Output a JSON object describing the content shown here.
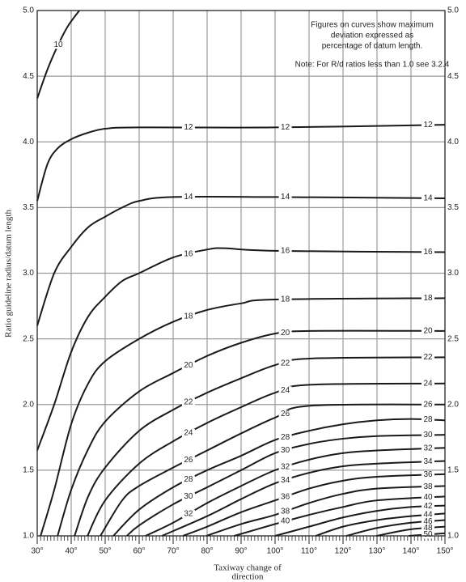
{
  "chart_data": {
    "type": "contour-line",
    "x_label_lines": [
      "Taxiway change of",
      "direction"
    ],
    "y_label": "Ratio guideline radius/datum length",
    "annotation_lines": [
      "Figures on curves show maximum",
      "deviation expressed as",
      "percentage of datum length."
    ],
    "note": "Note: For R/d ratios less than 1.0 see 3.2.4",
    "color": "#1a1a1a",
    "grid": true,
    "xlim": [
      30,
      150
    ],
    "xticks": [
      {
        "value": 30,
        "label": "30°"
      },
      {
        "value": 40,
        "label": "40°"
      },
      {
        "value": 50,
        "label": "50°"
      },
      {
        "value": 60,
        "label": "60°"
      },
      {
        "value": 70,
        "label": "70°"
      },
      {
        "value": 80,
        "label": "80°"
      },
      {
        "value": 90,
        "label": "90°"
      },
      {
        "value": 100,
        "label": "100°"
      },
      {
        "value": 110,
        "label": "110°"
      },
      {
        "value": 120,
        "label": "120°"
      },
      {
        "value": 130,
        "label": "130°"
      },
      {
        "value": 140,
        "label": "140°"
      },
      {
        "value": 150,
        "label": "150°"
      }
    ],
    "ylim": [
      1,
      5
    ],
    "yticks": [
      {
        "value": 1,
        "label": "1.0"
      },
      1.5,
      {
        "value": 2,
        "label": "2.0"
      },
      2.5,
      {
        "value": 3,
        "label": "3.0"
      },
      3.5,
      {
        "value": 4,
        "label": "4.0"
      },
      4.5,
      {
        "value": 5,
        "label": "5.0"
      }
    ],
    "series": [
      {
        "name": "10",
        "x": [
          30,
          33,
          36,
          39,
          42.4
        ],
        "values": [
          4.33,
          4.55,
          4.73,
          4.88,
          5.0
        ]
      },
      {
        "name": "12",
        "x": [
          30,
          33,
          36,
          40,
          45,
          50,
          60,
          100,
          150
        ],
        "values": [
          3.55,
          3.83,
          3.95,
          4.02,
          4.07,
          4.1,
          4.11,
          4.11,
          4.13
        ]
      },
      {
        "name": "14",
        "x": [
          30,
          35,
          40,
          45,
          50,
          55,
          60,
          70,
          100,
          150
        ],
        "values": [
          2.6,
          3.0,
          3.2,
          3.35,
          3.43,
          3.5,
          3.55,
          3.58,
          3.58,
          3.57
        ]
      },
      {
        "name": "16",
        "x": [
          30,
          35,
          40,
          45,
          50,
          55,
          60,
          70,
          80,
          85,
          100,
          150
        ],
        "values": [
          1.65,
          2.0,
          2.4,
          2.67,
          2.82,
          2.94,
          3.0,
          3.12,
          3.18,
          3.19,
          3.17,
          3.16
        ]
      },
      {
        "name": "18",
        "x": [
          31,
          35,
          40,
          45,
          50,
          60,
          70,
          80,
          90,
          100,
          150
        ],
        "values": [
          1.0,
          1.35,
          1.85,
          2.16,
          2.33,
          2.5,
          2.63,
          2.72,
          2.77,
          2.8,
          2.81
        ]
      },
      {
        "name": "20",
        "x": [
          36,
          40,
          45,
          50,
          60,
          70,
          80,
          90,
          100,
          110,
          150
        ],
        "values": [
          1.0,
          1.35,
          1.66,
          1.87,
          2.1,
          2.24,
          2.37,
          2.47,
          2.54,
          2.56,
          2.56
        ]
      },
      {
        "name": "22",
        "x": [
          41,
          45,
          50,
          60,
          70,
          80,
          90,
          100,
          110,
          150
        ],
        "values": [
          1.0,
          1.3,
          1.52,
          1.8,
          1.96,
          2.09,
          2.2,
          2.3,
          2.35,
          2.36
        ]
      },
      {
        "name": "24",
        "x": [
          44.8,
          50,
          60,
          70,
          80,
          90,
          100,
          110,
          150
        ],
        "values": [
          1.0,
          1.27,
          1.55,
          1.72,
          1.86,
          1.98,
          2.09,
          2.15,
          2.16
        ]
      },
      {
        "name": "26",
        "x": [
          48.6,
          55,
          60,
          70,
          80,
          90,
          100,
          110,
          150
        ],
        "values": [
          1.0,
          1.27,
          1.38,
          1.52,
          1.65,
          1.78,
          1.9,
          1.99,
          2.0
        ]
      },
      {
        "name": "28",
        "x": [
          52.4,
          60,
          70,
          80,
          90,
          100,
          110,
          120,
          130,
          140,
          150
        ],
        "values": [
          1.0,
          1.2,
          1.37,
          1.5,
          1.61,
          1.73,
          1.8,
          1.85,
          1.88,
          1.89,
          1.88
        ]
      },
      {
        "name": "30",
        "x": [
          56.4,
          60,
          70,
          80,
          90,
          100,
          110,
          120,
          130,
          150
        ],
        "values": [
          1.0,
          1.08,
          1.24,
          1.37,
          1.5,
          1.63,
          1.7,
          1.74,
          1.76,
          1.77
        ]
      },
      {
        "name": "32",
        "x": [
          61.9,
          70,
          80,
          90,
          100,
          110,
          120,
          130,
          150
        ],
        "values": [
          1.0,
          1.1,
          1.25,
          1.38,
          1.5,
          1.58,
          1.63,
          1.65,
          1.67
        ]
      },
      {
        "name": "34",
        "x": [
          66.7,
          80,
          90,
          100,
          110,
          120,
          130,
          150
        ],
        "values": [
          1.0,
          1.15,
          1.28,
          1.4,
          1.48,
          1.53,
          1.55,
          1.57
        ]
      },
      {
        "name": "36",
        "x": [
          72.9,
          80,
          90,
          100,
          110,
          120,
          130,
          150
        ],
        "values": [
          1.0,
          1.07,
          1.18,
          1.27,
          1.36,
          1.42,
          1.45,
          1.47
        ]
      },
      {
        "name": "38",
        "x": [
          79.8,
          90,
          100,
          110,
          120,
          130,
          150
        ],
        "values": [
          1.0,
          1.09,
          1.16,
          1.25,
          1.32,
          1.36,
          1.38
        ]
      },
      {
        "name": "40",
        "x": [
          88,
          100,
          110,
          120,
          130,
          150
        ],
        "values": [
          1.0,
          1.09,
          1.16,
          1.22,
          1.27,
          1.3
        ]
      },
      {
        "name": "42",
        "x": [
          100,
          110,
          120,
          130,
          140,
          150
        ],
        "values": [
          1.0,
          1.07,
          1.14,
          1.19,
          1.22,
          1.23
        ]
      },
      {
        "name": "44",
        "x": [
          112,
          120,
          130,
          140,
          150
        ],
        "values": [
          1.0,
          1.07,
          1.12,
          1.15,
          1.17
        ]
      },
      {
        "name": "46",
        "x": [
          121,
          130,
          140,
          150
        ],
        "values": [
          1.0,
          1.06,
          1.1,
          1.12
        ]
      },
      {
        "name": "48",
        "x": [
          129.8,
          140,
          150
        ],
        "values": [
          1.0,
          1.05,
          1.07
        ]
      },
      {
        "name": "50",
        "x": [
          139.3,
          145,
          150
        ],
        "values": [
          1.0,
          1.01,
          1.02
        ]
      }
    ]
  }
}
